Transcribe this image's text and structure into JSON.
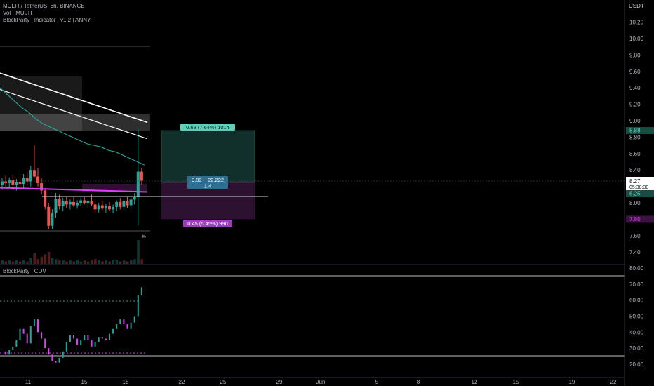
{
  "header": {
    "symbol_line": "MULTI / TetherUS, 6h, BINANCE",
    "vol_line": "Vol · MULTI",
    "indicator_line": "BlockParty | Indicator | v1.2 | ANNY",
    "cdv_line": "BlockParty | CDV"
  },
  "price_axis": {
    "currency": "USDT",
    "ticks": [
      "10.20",
      "10.00",
      "9.80",
      "9.60",
      "9.40",
      "9.20",
      "9.00",
      "8.80",
      "8.60",
      "8.40",
      "8.20",
      "8.00",
      "7.80",
      "7.60",
      "7.40"
    ],
    "tick_values": [
      10.2,
      10.0,
      9.8,
      9.6,
      9.4,
      9.2,
      9.0,
      8.8,
      8.6,
      8.4,
      8.2,
      8.0,
      7.8,
      7.6,
      7.4
    ],
    "current_price": "8.27",
    "countdown": "05:38:30",
    "target_label": "8.88",
    "entry_label": "8.25",
    "stop_label": "7.80"
  },
  "cdv_axis": {
    "ticks": [
      "80.00",
      "70.00",
      "60.00",
      "50.00",
      "40.00",
      "30.00",
      "20.00"
    ],
    "tick_values": [
      80,
      70,
      60,
      50,
      40,
      30,
      20
    ]
  },
  "time_axis": {
    "labels": [
      "11",
      "15",
      "18",
      "22",
      "25",
      "29",
      "Jun",
      "5",
      "8",
      "12",
      "15",
      "19",
      "22"
    ]
  },
  "position_tool": {
    "target_text": "0.63 (7.64%) 1014",
    "ratio_text": "0.02 ~ 22.222",
    "ratio_sub": "1.4",
    "stop_text": "0.45 (5.45%) 990",
    "entry": 8.25,
    "target": 8.88,
    "stop": 7.8
  },
  "colors": {
    "bull": "#26a69a",
    "bear": "#ef5350",
    "magenta": "#e040fb",
    "background": "#000000",
    "grid": "#2a2e39",
    "axis_text": "#b2b5be",
    "target_zone": "#11302b",
    "stop_zone": "#2c1230",
    "target_label_bg": "#5fd0b8",
    "stop_label_bg": "#9c3fb8"
  },
  "chart_data": {
    "type": "candlestick",
    "candles": [
      {
        "o": 8.22,
        "h": 8.3,
        "l": 8.16,
        "c": 8.26
      },
      {
        "o": 8.26,
        "h": 8.33,
        "l": 8.2,
        "c": 8.24
      },
      {
        "o": 8.24,
        "h": 8.31,
        "l": 8.18,
        "c": 8.28
      },
      {
        "o": 8.28,
        "h": 8.34,
        "l": 8.2,
        "c": 8.22
      },
      {
        "o": 8.22,
        "h": 8.29,
        "l": 8.15,
        "c": 8.25
      },
      {
        "o": 8.25,
        "h": 8.32,
        "l": 8.19,
        "c": 8.23
      },
      {
        "o": 8.23,
        "h": 8.35,
        "l": 8.18,
        "c": 8.3
      },
      {
        "o": 8.3,
        "h": 8.38,
        "l": 8.22,
        "c": 8.26
      },
      {
        "o": 8.26,
        "h": 8.45,
        "l": 8.2,
        "c": 8.4
      },
      {
        "o": 8.4,
        "h": 8.7,
        "l": 8.3,
        "c": 8.32
      },
      {
        "o": 8.32,
        "h": 8.42,
        "l": 8.2,
        "c": 8.24
      },
      {
        "o": 8.24,
        "h": 8.3,
        "l": 8.1,
        "c": 8.15
      },
      {
        "o": 8.15,
        "h": 8.18,
        "l": 7.92,
        "c": 7.95
      },
      {
        "o": 7.95,
        "h": 8.0,
        "l": 7.68,
        "c": 7.72
      },
      {
        "o": 7.72,
        "h": 7.92,
        "l": 7.68,
        "c": 7.88
      },
      {
        "o": 7.88,
        "h": 8.12,
        "l": 7.82,
        "c": 8.05
      },
      {
        "o": 8.05,
        "h": 8.1,
        "l": 7.92,
        "c": 7.96
      },
      {
        "o": 7.96,
        "h": 8.06,
        "l": 7.9,
        "c": 8.02
      },
      {
        "o": 8.02,
        "h": 8.08,
        "l": 7.94,
        "c": 7.98
      },
      {
        "o": 7.98,
        "h": 8.04,
        "l": 7.92,
        "c": 8.01
      },
      {
        "o": 8.01,
        "h": 8.07,
        "l": 7.95,
        "c": 7.97
      },
      {
        "o": 7.97,
        "h": 8.03,
        "l": 7.93,
        "c": 8.0
      },
      {
        "o": 8.0,
        "h": 8.06,
        "l": 7.96,
        "c": 8.03
      },
      {
        "o": 8.03,
        "h": 8.08,
        "l": 7.98,
        "c": 8.0
      },
      {
        "o": 8.0,
        "h": 8.05,
        "l": 7.94,
        "c": 8.02
      },
      {
        "o": 8.02,
        "h": 8.1,
        "l": 7.96,
        "c": 7.98
      },
      {
        "o": 7.98,
        "h": 8.04,
        "l": 7.88,
        "c": 7.92
      },
      {
        "o": 7.92,
        "h": 8.0,
        "l": 7.88,
        "c": 7.97
      },
      {
        "o": 7.97,
        "h": 8.02,
        "l": 7.9,
        "c": 7.93
      },
      {
        "o": 7.93,
        "h": 7.99,
        "l": 7.88,
        "c": 7.96
      },
      {
        "o": 7.96,
        "h": 8.01,
        "l": 7.9,
        "c": 7.92
      },
      {
        "o": 7.92,
        "h": 7.98,
        "l": 7.87,
        "c": 7.95
      },
      {
        "o": 7.95,
        "h": 8.03,
        "l": 7.9,
        "c": 8.01
      },
      {
        "o": 8.01,
        "h": 8.06,
        "l": 7.92,
        "c": 7.95
      },
      {
        "o": 7.95,
        "h": 8.05,
        "l": 7.9,
        "c": 8.02
      },
      {
        "o": 8.02,
        "h": 8.08,
        "l": 7.94,
        "c": 7.97
      },
      {
        "o": 7.97,
        "h": 8.07,
        "l": 7.92,
        "c": 8.04
      },
      {
        "o": 8.04,
        "h": 8.12,
        "l": 7.98,
        "c": 8.08
      },
      {
        "o": 8.08,
        "h": 8.9,
        "l": 7.72,
        "c": 8.38
      },
      {
        "o": 8.38,
        "h": 8.42,
        "l": 8.22,
        "c": 8.27
      }
    ],
    "volume": [
      3,
      2,
      3,
      2,
      3,
      2,
      3,
      2,
      5,
      9,
      4,
      6,
      8,
      10,
      5,
      4,
      3,
      3,
      2,
      3,
      2,
      3,
      2,
      3,
      2,
      3,
      4,
      3,
      2,
      3,
      2,
      3,
      3,
      2,
      3,
      2,
      3,
      4,
      20,
      4
    ],
    "upper_band": [
      9.58,
      9.56,
      9.54,
      9.52,
      9.5,
      9.48,
      9.46,
      9.44,
      9.42,
      9.4,
      9.38,
      9.36,
      9.34,
      9.32,
      9.3,
      9.28,
      9.26,
      9.24,
      9.22,
      9.2,
      9.18,
      9.16,
      9.14,
      9.12,
      9.1,
      9.08,
      9.06,
      9.04,
      9.02,
      9.0,
      8.98
    ],
    "lower_band": [
      9.38,
      9.36,
      9.34,
      9.32,
      9.3,
      9.28,
      9.26,
      9.24,
      9.22,
      9.2,
      9.18,
      9.16,
      9.14,
      9.12,
      9.1,
      9.08,
      9.06,
      9.04,
      9.02,
      9.0,
      8.98,
      8.96,
      8.94,
      8.92,
      8.9,
      8.88,
      8.86,
      8.84,
      8.82,
      8.8,
      8.78
    ],
    "trail_line": [
      9.4,
      9.32,
      9.24,
      9.16,
      9.1,
      9.02,
      8.96,
      8.92,
      8.88,
      8.84,
      8.8,
      8.76,
      8.72,
      8.7,
      8.68,
      8.64,
      8.62,
      8.58,
      8.54,
      8.5,
      8.46
    ],
    "magenta_level": 8.15,
    "cdv": [
      28,
      26,
      29,
      31,
      35,
      42,
      39,
      33,
      44,
      48,
      40,
      36,
      30,
      26,
      22,
      21,
      24,
      28,
      34,
      38,
      36,
      32,
      35,
      38,
      35,
      31,
      34,
      37,
      36,
      35,
      39,
      42,
      45,
      48,
      45,
      42,
      46,
      50,
      63,
      68
    ]
  }
}
